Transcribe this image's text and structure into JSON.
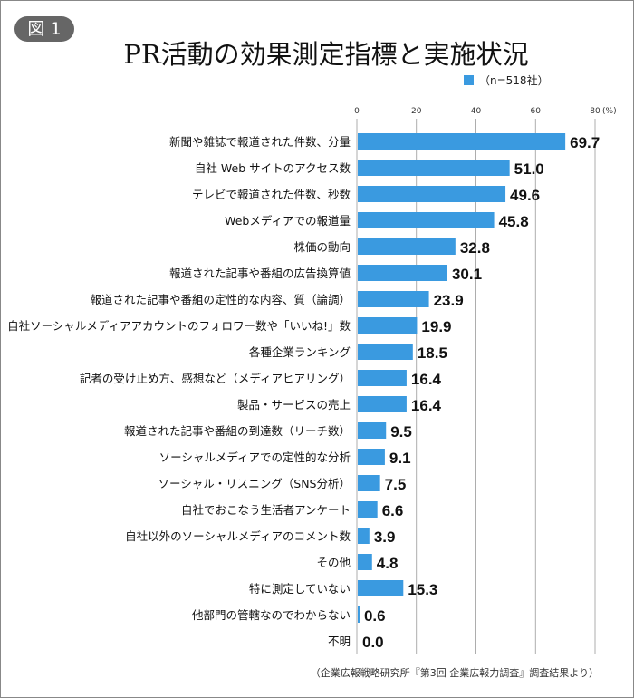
{
  "badge": "図 1",
  "title": "PR活動の効果測定指標と実施状況",
  "legend": "（n=518社）",
  "source": "（企業広報戦略研究所『第3回 企業広報力調査』調査結果より）",
  "chart_data": {
    "type": "bar",
    "orientation": "horizontal",
    "title": "PR活動の効果測定指標と実施状況",
    "xlabel": "",
    "unit_label": "(%)",
    "xlim": [
      0,
      80
    ],
    "ticks": [
      "0",
      "20",
      "40",
      "60",
      "80"
    ],
    "grid": true,
    "bar_color": "#3a9ae0",
    "legend_position": "top-right",
    "categories": [
      "新聞や雑誌で報道された件数、分量",
      "自社 Web サイトのアクセス数",
      "テレビで報道された件数、秒数",
      "Webメディアでの報道量",
      "株価の動向",
      "報道された記事や番組の広告換算値",
      "報道された記事や番組の定性的な内容、質（論調）",
      "自社ソーシャルメディアアカウントのフォロワー数や「いいね!」数",
      "各種企業ランキング",
      "記者の受け止め方、感想など（メディアヒアリング）",
      "製品・サービスの売上",
      "報道された記事や番組の到達数（リーチ数）",
      "ソーシャルメディアでの定性的な分析",
      "ソーシャル・リスニング（SNS分析）",
      "自社でおこなう生活者アンケート",
      "自社以外のソーシャルメディアのコメント数",
      "その他",
      "特に測定していない",
      "他部門の管轄なのでわからない",
      "不明"
    ],
    "values": [
      69.7,
      51.0,
      49.6,
      45.8,
      32.8,
      30.1,
      23.9,
      19.9,
      18.5,
      16.4,
      16.4,
      9.5,
      9.1,
      7.5,
      6.6,
      3.9,
      4.8,
      15.3,
      0.6,
      0.0
    ],
    "value_labels": [
      "69.7",
      "51.0",
      "49.6",
      "45.8",
      "32.8",
      "30.1",
      "23.9",
      "19.9",
      "18.5",
      "16.4",
      "16.4",
      "9.5",
      "9.1",
      "7.5",
      "6.6",
      "3.9",
      "4.8",
      "15.3",
      "0.6",
      "0.0"
    ]
  }
}
